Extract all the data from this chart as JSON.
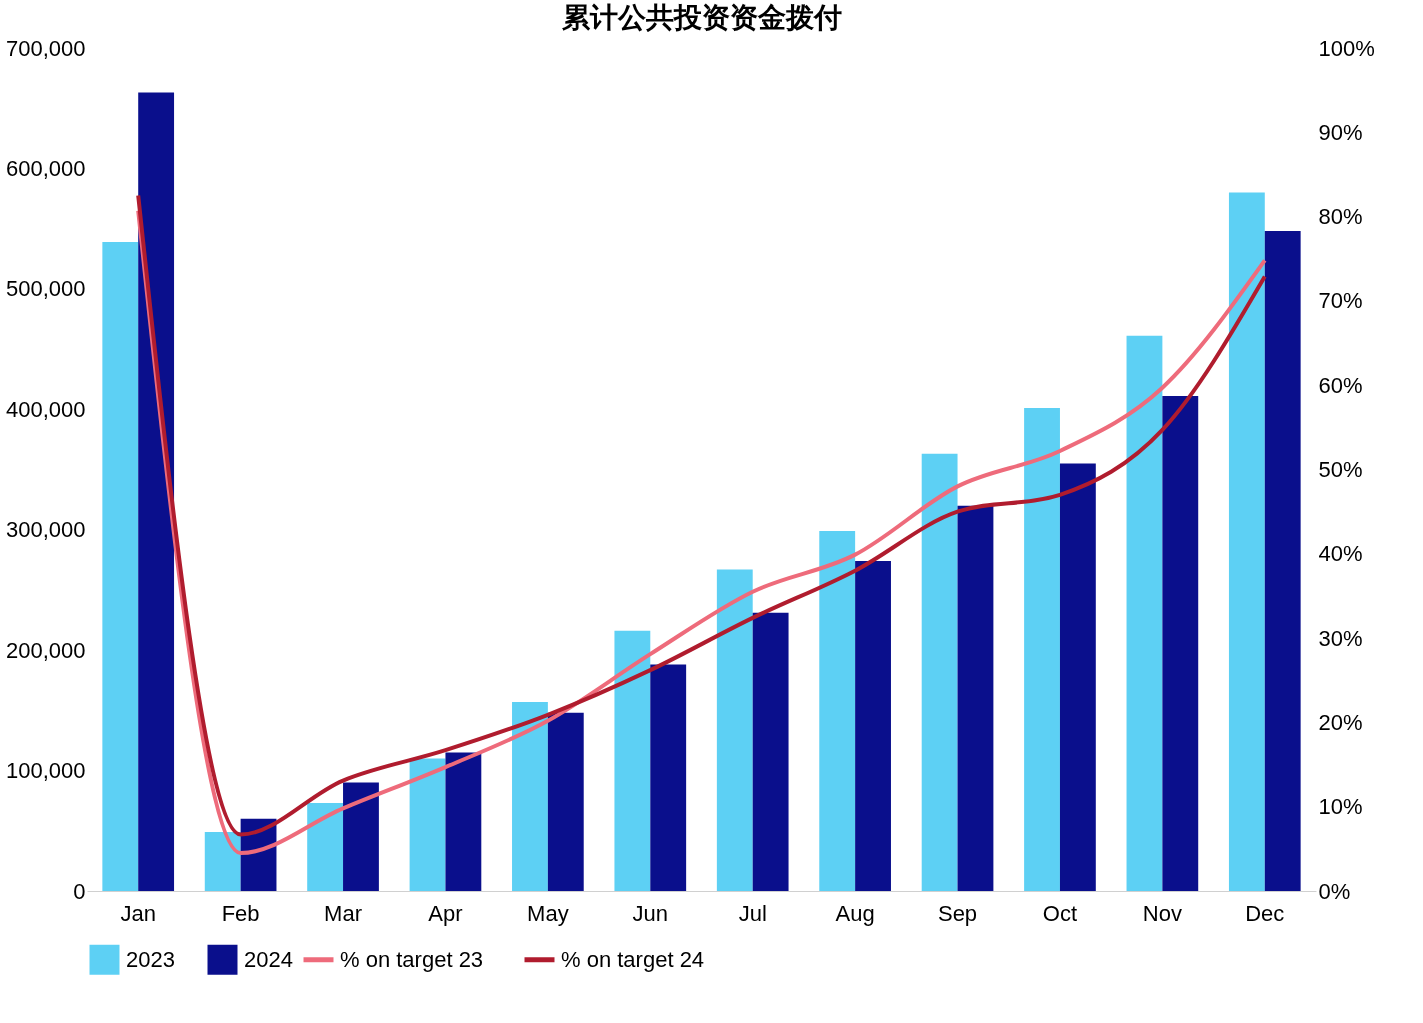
{
  "chart_data": {
    "type": "bar",
    "title": "累计公共投资资金拨付",
    "categories": [
      "Jan",
      "Feb",
      "Mar",
      "Apr",
      "May",
      "Jun",
      "Jul",
      "Aug",
      "Sep",
      "Oct",
      "Nov",
      "Dec"
    ],
    "series": [
      {
        "name": "2023",
        "color": "#5dd0f4",
        "values": [
          539000,
          49000,
          73000,
          110000,
          157000,
          216000,
          267000,
          299000,
          363000,
          401000,
          461000,
          580000
        ]
      },
      {
        "name": "2024",
        "color": "#0a0f8c",
        "values": [
          663000,
          60000,
          90000,
          115000,
          148000,
          188000,
          231000,
          274000,
          320000,
          355000,
          411000,
          548000
        ]
      },
      {
        "name": "% on target 23",
        "type": "line",
        "axis": "y2",
        "color": "#ee6b7b",
        "values": [
          80.7,
          4.5,
          9.8,
          14.7,
          20.2,
          28.1,
          35.5,
          39.9,
          48,
          52.2,
          59.7,
          74.8
        ]
      },
      {
        "name": "% on target 24",
        "type": "line",
        "axis": "y2",
        "color": "#b01c2e",
        "values": [
          82.5,
          6.7,
          13.1,
          16.7,
          20.9,
          26.2,
          32.4,
          38,
          45,
          47,
          54.7,
          72.9
        ]
      }
    ],
    "ylim": [
      0,
      700000
    ],
    "yticks": [
      {
        "value": 0,
        "label": "0"
      },
      {
        "value": 100000,
        "label": "100,000"
      },
      {
        "value": 200000,
        "label": "200,000"
      },
      {
        "value": 300000,
        "label": "300,000"
      },
      {
        "value": 400000,
        "label": "400,000"
      },
      {
        "value": 500000,
        "label": "500,000"
      },
      {
        "value": 600000,
        "label": "600,000"
      },
      {
        "value": 700000,
        "label": "700,000"
      }
    ],
    "y2lim": [
      0,
      100
    ],
    "y2ticks": [
      {
        "value": 0,
        "label": "0%"
      },
      {
        "value": 10,
        "label": "10%"
      },
      {
        "value": 20,
        "label": "20%"
      },
      {
        "value": 30,
        "label": "30%"
      },
      {
        "value": 40,
        "label": "40%"
      },
      {
        "value": 50,
        "label": "50%"
      },
      {
        "value": 60,
        "label": "60%"
      },
      {
        "value": 70,
        "label": "70%"
      },
      {
        "value": 80,
        "label": "80%"
      },
      {
        "value": 90,
        "label": "90%"
      },
      {
        "value": 100,
        "label": "100%"
      }
    ],
    "grid": false,
    "legend": "bottom"
  }
}
